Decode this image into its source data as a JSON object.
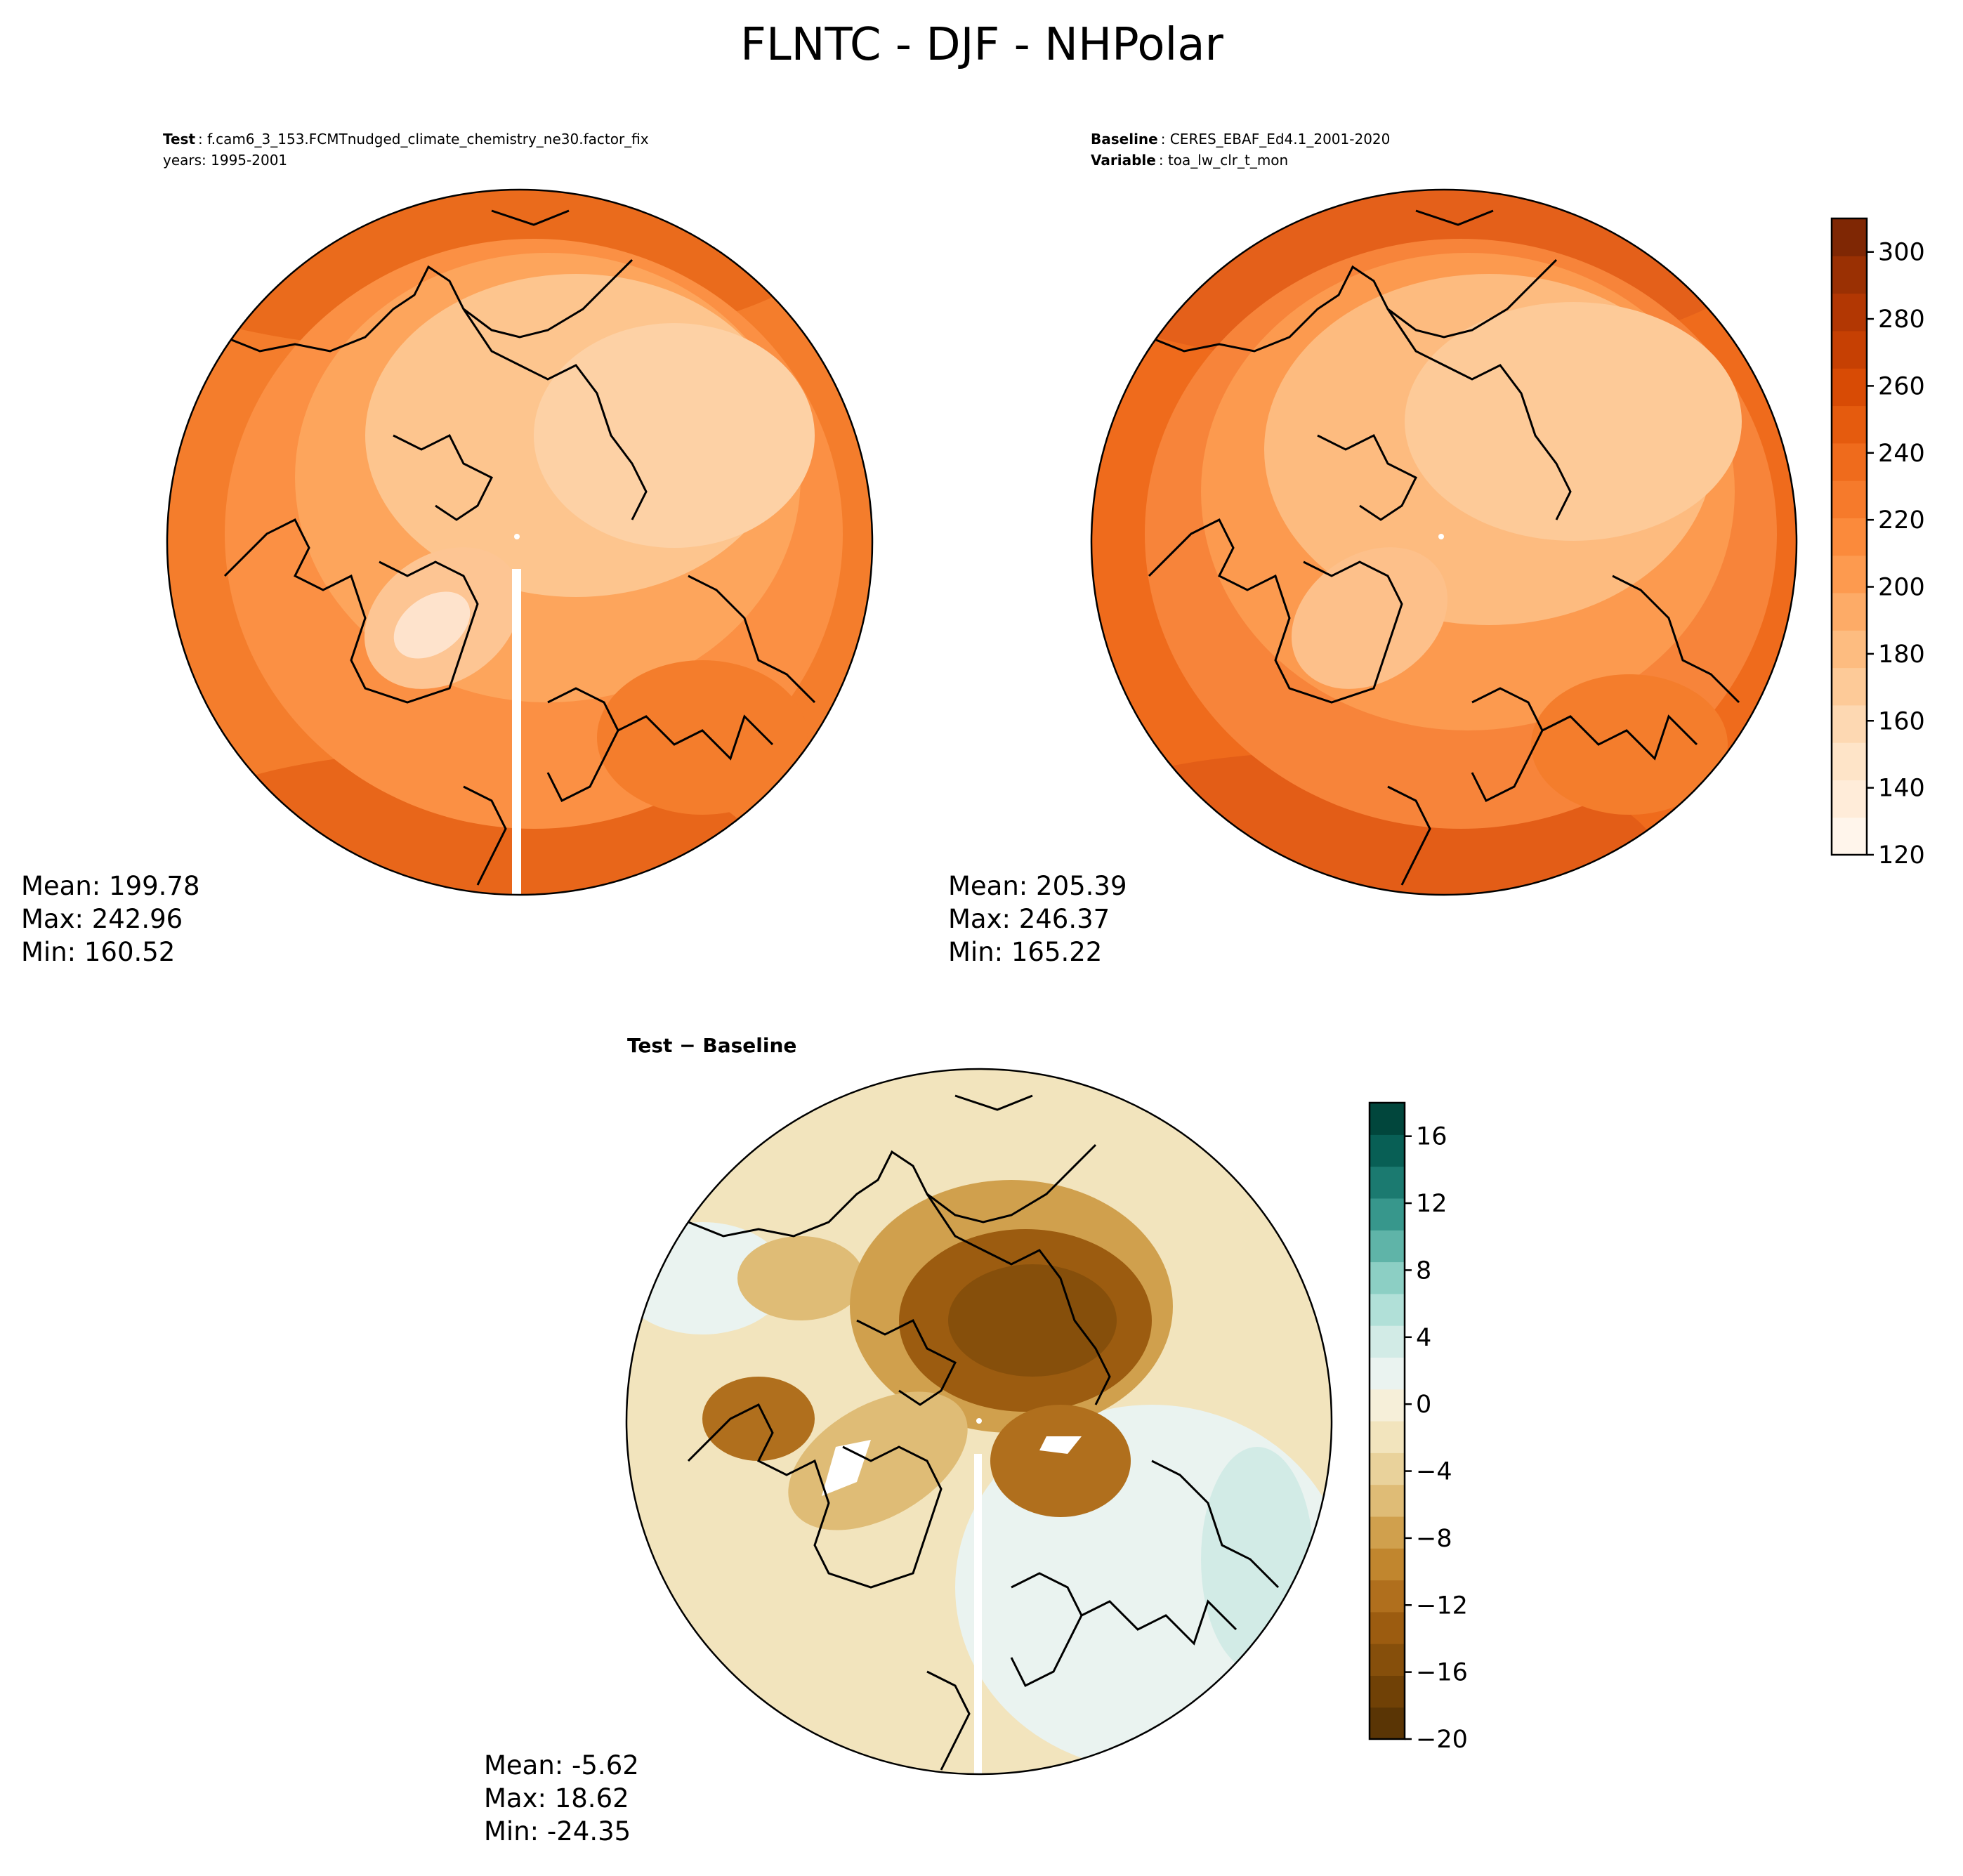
{
  "title": "FLNTC - DJF - NHPolar",
  "test_panel": {
    "label": "Test",
    "case": "f.cam6_3_153.FCMTnudged_climate_chemistry_ne30.factor_fix",
    "years": "years: 1995-2001",
    "stats": {
      "mean": "Mean: 199.78",
      "max": "Max: 242.96",
      "min": "Min: 160.52"
    }
  },
  "baseline_panel": {
    "label": "Baseline",
    "case": "CERES_EBAF_Ed4.1_2001-2020",
    "variable_label": "Variable",
    "variable": "toa_lw_clr_t_mon",
    "stats": {
      "mean": "Mean: 205.39",
      "max": "Max: 246.37",
      "min": "Min: 165.22"
    }
  },
  "diff_panel": {
    "title": "Test − Baseline",
    "stats": {
      "mean": "Mean: -5.62",
      "max": "Max: 18.62",
      "min": "Min: -24.35"
    }
  },
  "colorbar_main": {
    "min": 120,
    "max": 310,
    "ticks": [
      "120",
      "140",
      "160",
      "180",
      "200",
      "220",
      "240",
      "260",
      "280",
      "300"
    ],
    "tick_values": [
      120,
      140,
      160,
      180,
      200,
      220,
      240,
      260,
      280,
      300
    ],
    "colors": [
      "#fff5eb",
      "#ffecd9",
      "#fee4c8",
      "#fdd8b2",
      "#fdca98",
      "#fdbc80",
      "#fdab67",
      "#fd9a4f",
      "#fb8a3b",
      "#f67a2b",
      "#ef6b1c",
      "#e55b0e",
      "#d84b05",
      "#c64003",
      "#b23703",
      "#9a3003",
      "#7f2704"
    ]
  },
  "colorbar_diff": {
    "min": -20,
    "max": 18,
    "ticks": [
      "−20",
      "−16",
      "−12",
      "−8",
      "−4",
      "0",
      "4",
      "8",
      "12",
      "16"
    ],
    "tick_values": [
      -20,
      -16,
      -12,
      -8,
      -4,
      0,
      4,
      8,
      12,
      16
    ],
    "colors": [
      "#5a3505",
      "#704106",
      "#864f0b",
      "#9c5c10",
      "#b06f1d",
      "#c1862e",
      "#d0a04d",
      "#dfbc76",
      "#e9d29b",
      "#f2e4bd",
      "#f6efd9",
      "#eaf3f0",
      "#d2ebe6",
      "#b1e0d8",
      "#8ccfc4",
      "#5fb4a8",
      "#37978c",
      "#1b7a70",
      "#085f55",
      "#01463c"
    ]
  }
}
